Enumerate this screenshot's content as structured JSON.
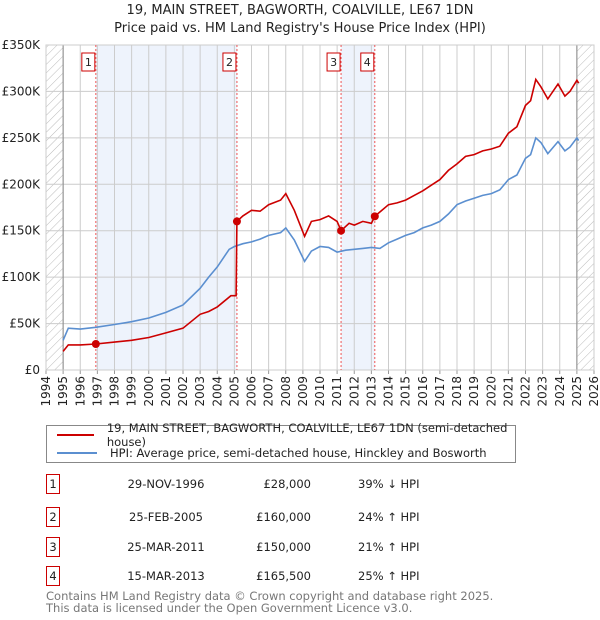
{
  "title_line1": "19, MAIN STREET, BAGWORTH, COALVILLE, LE67 1DN",
  "title_line2": "Price paid vs. HM Land Registry's House Price Index (HPI)",
  "legend": {
    "property": "19, MAIN STREET, BAGWORTH, COALVILLE, LE67 1DN (semi-detached house)",
    "hpi": "HPI: Average price, semi-detached house, Hinckley and Bosworth"
  },
  "colors": {
    "property": "#cc0000",
    "hpi": "#5b8fd0",
    "shade": "#eef3fc"
  },
  "transactions": [
    {
      "num": "1",
      "date": "29-NOV-1996",
      "price": "£28,000",
      "hpi": "39% ↓ HPI",
      "x": 1996.91,
      "y": 28000
    },
    {
      "num": "2",
      "date": "25-FEB-2005",
      "price": "£160,000",
      "hpi": "24% ↑ HPI",
      "x": 2005.15,
      "y": 160000
    },
    {
      "num": "3",
      "date": "25-MAR-2011",
      "price": "£150,000",
      "hpi": "21% ↑ HPI",
      "x": 2011.23,
      "y": 150000
    },
    {
      "num": "4",
      "date": "15-MAR-2013",
      "price": "£165,500",
      "hpi": "25% ↑ HPI",
      "x": 2013.2,
      "y": 165500
    }
  ],
  "footer": {
    "line1": "Contains HM Land Registry data © Crown copyright and database right 2025.",
    "line2": "This data is licensed under the Open Government Licence v3.0."
  },
  "chart_data": {
    "type": "line",
    "xlim": [
      1994,
      2026
    ],
    "ylim": [
      0,
      350000
    ],
    "xticks": [
      "1994",
      "1995",
      "1996",
      "1997",
      "1998",
      "1999",
      "2000",
      "2001",
      "2002",
      "2003",
      "2004",
      "2005",
      "2006",
      "2007",
      "2008",
      "2009",
      "2010",
      "2011",
      "2012",
      "2013",
      "2014",
      "2015",
      "2016",
      "2017",
      "2018",
      "2019",
      "2020",
      "2021",
      "2022",
      "2023",
      "2024",
      "2025",
      "2026"
    ],
    "yticks": [
      {
        "v": 0,
        "label": "£0"
      },
      {
        "v": 50000,
        "label": "£50K"
      },
      {
        "v": 100000,
        "label": "£100K"
      },
      {
        "v": 150000,
        "label": "£150K"
      },
      {
        "v": 200000,
        "label": "£200K"
      },
      {
        "v": 250000,
        "label": "£250K"
      },
      {
        "v": 300000,
        "label": "£300K"
      },
      {
        "v": 350000,
        "label": "£350K"
      }
    ],
    "grid": true,
    "data_range": [
      1995,
      2025.1
    ],
    "series": [
      {
        "name": "property",
        "x": [
          1995,
          1995.3,
          1996,
          1996.91,
          1998,
          1999,
          2000,
          2001,
          2002,
          2003,
          2003.5,
          2004,
          2004.8,
          2005.1,
          2005.15,
          2005.5,
          2006,
          2006.5,
          2007,
          2007.7,
          2008,
          2008.5,
          2009.1,
          2009.5,
          2010,
          2010.5,
          2011,
          2011.23,
          2011.7,
          2012,
          2012.5,
          2013,
          2013.2,
          2014,
          2014.5,
          2015,
          2015.5,
          2016,
          2016.5,
          2017,
          2017.5,
          2018,
          2018.5,
          2019,
          2019.5,
          2020,
          2020.5,
          2021,
          2021.5,
          2022,
          2022.3,
          2022.6,
          2022.9,
          2023.3,
          2023.9,
          2024.3,
          2024.6,
          2025,
          2025.1
        ],
        "y": [
          20000,
          27000,
          27000,
          28000,
          30000,
          32000,
          35000,
          40000,
          45000,
          60000,
          63000,
          68000,
          80000,
          80000,
          160000,
          166000,
          172000,
          171000,
          178000,
          183000,
          190000,
          172000,
          144000,
          160000,
          162000,
          166000,
          160000,
          150000,
          158000,
          156000,
          160000,
          158000,
          165500,
          178000,
          180000,
          183000,
          188000,
          193000,
          199000,
          205000,
          215000,
          222000,
          230000,
          232000,
          236000,
          238000,
          241000,
          255000,
          262000,
          285000,
          290000,
          313000,
          305000,
          292000,
          308000,
          295000,
          300000,
          312000,
          309000
        ]
      },
      {
        "name": "hpi",
        "x": [
          1995,
          1995.3,
          1996,
          1996.91,
          1998,
          1999,
          2000,
          2001,
          2002,
          2003,
          2003.5,
          2004,
          2004.7,
          2005,
          2005.5,
          2006,
          2006.5,
          2007,
          2007.7,
          2008,
          2008.5,
          2009.1,
          2009.5,
          2010,
          2010.5,
          2011,
          2011.5,
          2012,
          2012.5,
          2013,
          2013.5,
          2014,
          2014.5,
          2015,
          2015.5,
          2016,
          2016.5,
          2017,
          2017.5,
          2018,
          2018.5,
          2019,
          2019.5,
          2020,
          2020.5,
          2021,
          2021.5,
          2022,
          2022.3,
          2022.6,
          2022.9,
          2023.3,
          2023.9,
          2024.3,
          2024.6,
          2025,
          2025.1
        ],
        "y": [
          32000,
          45000,
          44000,
          46000,
          49000,
          52000,
          56000,
          62000,
          70000,
          88000,
          100000,
          111000,
          130000,
          133000,
          136000,
          138000,
          141000,
          145000,
          148000,
          153000,
          140000,
          117000,
          128000,
          133000,
          132000,
          127000,
          129000,
          130000,
          131000,
          132000,
          131000,
          137000,
          141000,
          145000,
          148000,
          153000,
          156000,
          160000,
          168000,
          178000,
          182000,
          185000,
          188000,
          190000,
          194000,
          205000,
          210000,
          228000,
          232000,
          250000,
          245000,
          233000,
          246000,
          236000,
          240000,
          250000,
          247000
        ]
      }
    ]
  }
}
